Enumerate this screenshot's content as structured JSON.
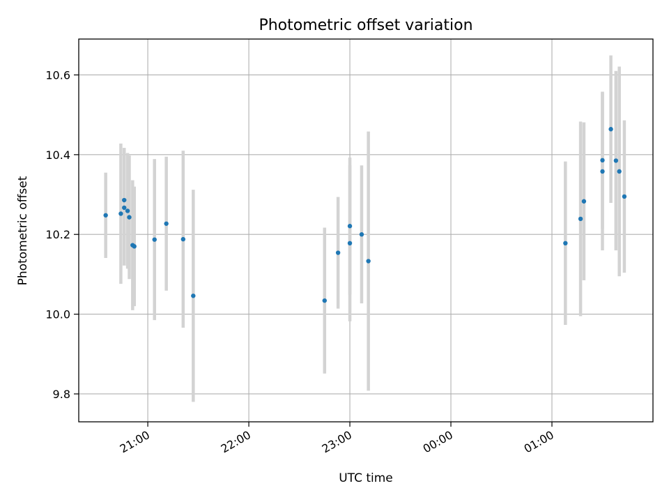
{
  "chart_data": {
    "type": "scatter",
    "title": "Photometric offset variation",
    "xlabel": "UTC time",
    "ylabel": "Photometric offset",
    "x_axis": {
      "kind": "time",
      "min": "20:19",
      "max": "02:00",
      "ticks": [
        {
          "time": "21:00",
          "label": "21:00"
        },
        {
          "time": "22:00",
          "label": "22:00"
        },
        {
          "time": "23:00",
          "label": "23:00"
        },
        {
          "time": "00:00",
          "label": "00:00"
        },
        {
          "time": "01:00",
          "label": "01:00"
        }
      ]
    },
    "y_axis": {
      "min": 9.73,
      "max": 10.69,
      "ticks": [
        9.8,
        10.0,
        10.2,
        10.4,
        10.6
      ],
      "tick_labels": [
        "9.8",
        "10.0",
        "10.2",
        "10.4",
        "10.6"
      ]
    },
    "grid": true,
    "colors": {
      "point": "#1f77b4",
      "errorbar": "#d3d3d3",
      "grid": "#b0b0b0"
    },
    "points": [
      {
        "time": "20:35",
        "y": 10.248,
        "yerr": 0.107
      },
      {
        "time": "20:44",
        "y": 10.252,
        "yerr": 0.176
      },
      {
        "time": "20:46",
        "y": 10.286,
        "yerr": 0.131
      },
      {
        "time": "20:46",
        "y": 10.267,
        "yerr": 0.145
      },
      {
        "time": "20:48",
        "y": 10.259,
        "yerr": 0.145
      },
      {
        "time": "20:49",
        "y": 10.243,
        "yerr": 0.155
      },
      {
        "time": "20:51",
        "y": 10.173,
        "yerr": 0.163
      },
      {
        "time": "20:52",
        "y": 10.17,
        "yerr": 0.15
      },
      {
        "time": "21:04",
        "y": 10.187,
        "yerr": 0.202
      },
      {
        "time": "21:11",
        "y": 10.227,
        "yerr": 0.168
      },
      {
        "time": "21:21",
        "y": 10.188,
        "yerr": 0.222
      },
      {
        "time": "21:27",
        "y": 10.046,
        "yerr": 0.266
      },
      {
        "time": "22:45",
        "y": 10.034,
        "yerr": 0.183
      },
      {
        "time": "22:53",
        "y": 10.154,
        "yerr": 0.14
      },
      {
        "time": "23:00",
        "y": 10.178,
        "yerr": 0.196
      },
      {
        "time": "23:00",
        "y": 10.221,
        "yerr": 0.172
      },
      {
        "time": "23:07",
        "y": 10.2,
        "yerr": 0.173
      },
      {
        "time": "23:11",
        "y": 10.133,
        "yerr": 0.325
      },
      {
        "time": "01:08",
        "y": 10.178,
        "yerr": 0.205
      },
      {
        "time": "01:17",
        "y": 10.239,
        "yerr": 0.244
      },
      {
        "time": "01:19",
        "y": 10.283,
        "yerr": 0.198
      },
      {
        "time": "01:30",
        "y": 10.358,
        "yerr": 0.198
      },
      {
        "time": "01:30",
        "y": 10.386,
        "yerr": 0.172
      },
      {
        "time": "01:35",
        "y": 10.464,
        "yerr": 0.185
      },
      {
        "time": "01:38",
        "y": 10.385,
        "yerr": 0.225
      },
      {
        "time": "01:40",
        "y": 10.358,
        "yerr": 0.263
      },
      {
        "time": "01:43",
        "y": 10.295,
        "yerr": 0.191
      }
    ]
  }
}
